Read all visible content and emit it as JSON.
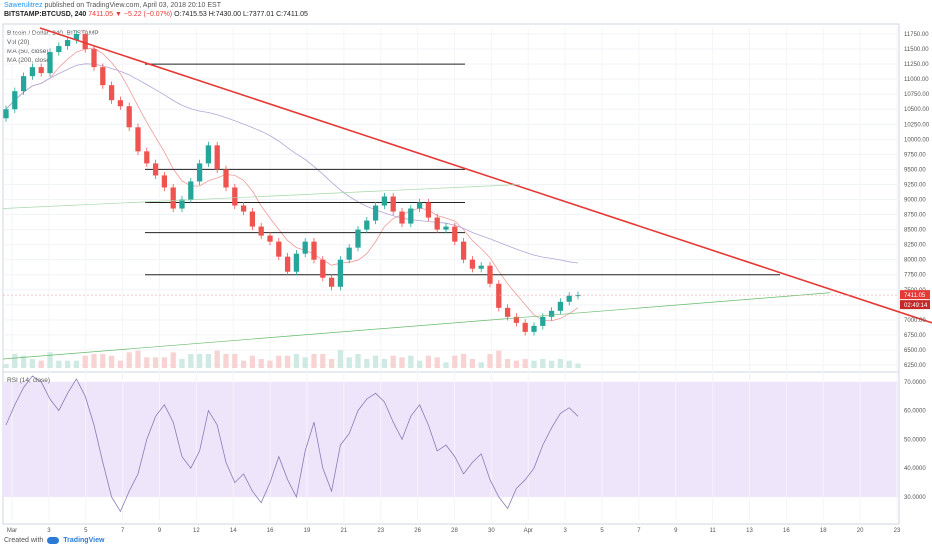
{
  "header": {
    "author": "Sawerulitrez",
    "published": " published on TradingView.com, April 03, 2018 20:10 EST",
    "symbol": "BITSTAMP:BTCUSD, 240",
    "change": "7411.05 ▼ −5.22 (−0.07%)",
    "ohlc": "O:7415.53 H:7430.00 L:7377.01 C:7411.05"
  },
  "legend": [
    "Bitcoin / Dollar, 240, BITSTAMP",
    "Vol (20)",
    "MA (50, close)",
    "MA (200, close)"
  ],
  "rsi_label": "RSI (14, close)",
  "footer": {
    "created": "Created with",
    "brand": "TradingView"
  },
  "price_tags": {
    "last": "7411.05",
    "timer": "02:49:14"
  },
  "colors": {
    "up": "#26a69a",
    "down": "#ef5350",
    "trend": "#e53935",
    "rsi_band": "#efe5fb",
    "accent": "#2b7bd6"
  },
  "chart_data": [
    {
      "type": "candlestick",
      "title": "Bitcoin / Dollar, 240, BITSTAMP",
      "x_ticks": [
        "Mar",
        "3",
        "5",
        "7",
        "9",
        "12",
        "14",
        "16",
        "19",
        "21",
        "23",
        "26",
        "28",
        "30",
        "Apr",
        "3",
        "5",
        "7",
        "9",
        "11",
        "13",
        "16",
        "18",
        "20",
        "23"
      ],
      "y_ticks": [
        6250,
        6500,
        6750,
        7000,
        7250,
        7500,
        7750,
        8000,
        8250,
        8500,
        8750,
        9000,
        9250,
        9500,
        9750,
        10000,
        10250,
        10500,
        10750,
        11000,
        11250,
        11500,
        11750
      ],
      "ylim": [
        6200,
        11850
      ],
      "last_price": 7411.05,
      "series": [
        {
          "close": [
            10500,
            10800,
            11050,
            11200,
            11100,
            11450,
            11550,
            11650,
            11750,
            11500,
            11200,
            10900,
            10650,
            10550,
            10200,
            9800,
            9600,
            9400,
            9200,
            8850,
            9000,
            9300,
            9600,
            9900,
            9500,
            9200,
            8900,
            8800,
            8550,
            8400,
            8300,
            8050,
            7800,
            8100,
            8300,
            8000,
            7700,
            7550,
            8000,
            8200,
            8500,
            8650,
            8900,
            9050,
            8800,
            8600,
            8850,
            8950,
            8700,
            8500,
            8550,
            8300,
            8000,
            7850,
            7900,
            7600,
            7200,
            7050,
            6950,
            6800,
            6900,
            7050,
            7150,
            7300,
            7400,
            7411
          ]
        }
      ],
      "horizontal_levels": [
        11250,
        9500,
        8950,
        8450,
        7750
      ]
    },
    {
      "type": "line",
      "title": "RSI (14, close)",
      "y_ticks": [
        "30.0000",
        "40.0000",
        "50.0000",
        "60.0000",
        "70.0000"
      ],
      "ylim": [
        22,
        72
      ],
      "band": [
        30,
        70
      ],
      "values": [
        55,
        62,
        68,
        72,
        70,
        64,
        60,
        66,
        71,
        65,
        55,
        42,
        30,
        25,
        32,
        38,
        50,
        58,
        62,
        56,
        44,
        40,
        46,
        60,
        55,
        42,
        35,
        38,
        32,
        28,
        35,
        44,
        36,
        30,
        46,
        56,
        40,
        32,
        48,
        52,
        60,
        64,
        66,
        63,
        56,
        50,
        58,
        62,
        55,
        46,
        48,
        44,
        38,
        42,
        45,
        36,
        30,
        26,
        33,
        36,
        40,
        48,
        54,
        59,
        61,
        58
      ]
    }
  ]
}
